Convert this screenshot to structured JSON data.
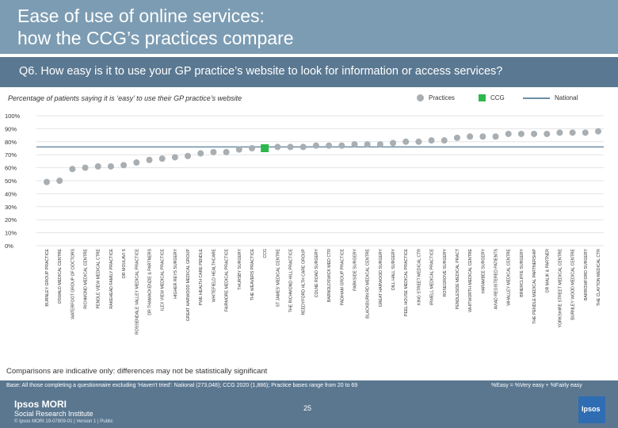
{
  "header": {
    "title": "Ease of use of online services:\nhow the CCG’s practices compare"
  },
  "question": "Q6. How easy is it to use your GP practice’s website to look for information or access services?",
  "subtitle": "Percentage of patients saying it is ‘easy’ to use their GP practice’s website",
  "legend": {
    "practices": "Practices",
    "ccg": "CCG",
    "national": "National"
  },
  "colors": {
    "practice": "#a8aeb2",
    "ccg": "#2db84c",
    "national": "#6d8ea6",
    "grid": "#e3e3e3",
    "axis_text": "#333333"
  },
  "chart_data": {
    "type": "scatter",
    "ylim": [
      0,
      100
    ],
    "yticks": [
      "0%",
      "10%",
      "20%",
      "30%",
      "40%",
      "50%",
      "60%",
      "70%",
      "80%",
      "90%",
      "100%"
    ],
    "national": 76,
    "categories": [
      "BURNLEY GROUP PRACTICE",
      "OSWALD MEDICAL CENTRE",
      "WATERFOOT GROUP OF DOCTORS",
      "RICHMOND MEDICAL CENTRE",
      "PENDLE VIEW MEDICAL CTRE",
      "RAKEHEAD FAMILY PRACTICE",
      "DR MOULAVI S",
      "ROSSENDALE VALLEY MEDICAL PRACTICE",
      "DR THAMACKENZIE & PARTNERS",
      "ILEX VIEW MEDICAL PRACTICE",
      "HIGHER REYS SURGERY",
      "GREAT HARWOOD MEDICAL GROUP",
      "PWE HEALTH CARE PENDLE",
      "WHITEFIELD HEALTHCARE",
      "FAIRMORE MEDICAL PRACTICE",
      "THURSBY SURGERY",
      "THE WEAVERS PRACTICE",
      "CCG",
      "ST JAMES' MEDICAL CENTRE",
      "THE RICHMOND HILL PRACTICE",
      "REEDYFORD HLTH CARE GROUP",
      "COLNE ROAD SURGERY",
      "BARNOLDSWICK MED CTR",
      "PADIHAM GROUP PRACTICE",
      "PARKSIDE SURGERY",
      "BLACKBURN RD MEDICAL CENTRE",
      "GREAT HARWOOD SURGERY",
      "DILL HALL SURGERY",
      "PEEL HOUSE MEDICAL PRACTICE",
      "KING STREET MEDICAL CTR",
      "IRWELL MEDICAL PRACTICE",
      "ROSEGROVE SURGERY",
      "PENDLESIDE MEDICAL PRACT",
      "WHITWORTH MEDICAL CENTRE",
      "HARAMBEE SURGERY",
      "AVIAD REGISTERED PATIENTS",
      "WHALLEY MEDICAL CENTRE",
      "BRIERCLIFFE SURGERY",
      "THE PENDLE MEDICAL PARTNERSHIP",
      "DR MALIK & PARTNER",
      "YORKSHIRE STREET MEDICAL CENTRE",
      "BURNLEY WOOD MEDICAL CENTRE",
      "BARROWFORD SURGERY",
      "THE CLAYTON MEDICAL CTR"
    ],
    "values": [
      49,
      50,
      59,
      60,
      61,
      61,
      62,
      64,
      66,
      67,
      68,
      69,
      71,
      72,
      72,
      74,
      75,
      75,
      76,
      76,
      76,
      77,
      77,
      77,
      78,
      78,
      78,
      79,
      80,
      80,
      81,
      81,
      83,
      84,
      84,
      84,
      86,
      86,
      86,
      86,
      87,
      87,
      87,
      88
    ],
    "ccg_index": 17
  },
  "caveat": "Comparisons are indicative only: differences may not be statistically significant",
  "footer": {
    "base": "Base: All those completing a questionnaire excluding ‘Haven’t tried’: National (273,048); CCG 2020 (1,886); Practice bases range from 20 to 69",
    "formula": "%Easy = %Very easy + %Fairly easy",
    "brand": "Ipsos MORI",
    "brand_sub": "Social Research Institute",
    "copyright": "© Ipsos MORI     19-07809-01 | Version 1 | Public",
    "page": "25",
    "logo": "Ipsos"
  }
}
